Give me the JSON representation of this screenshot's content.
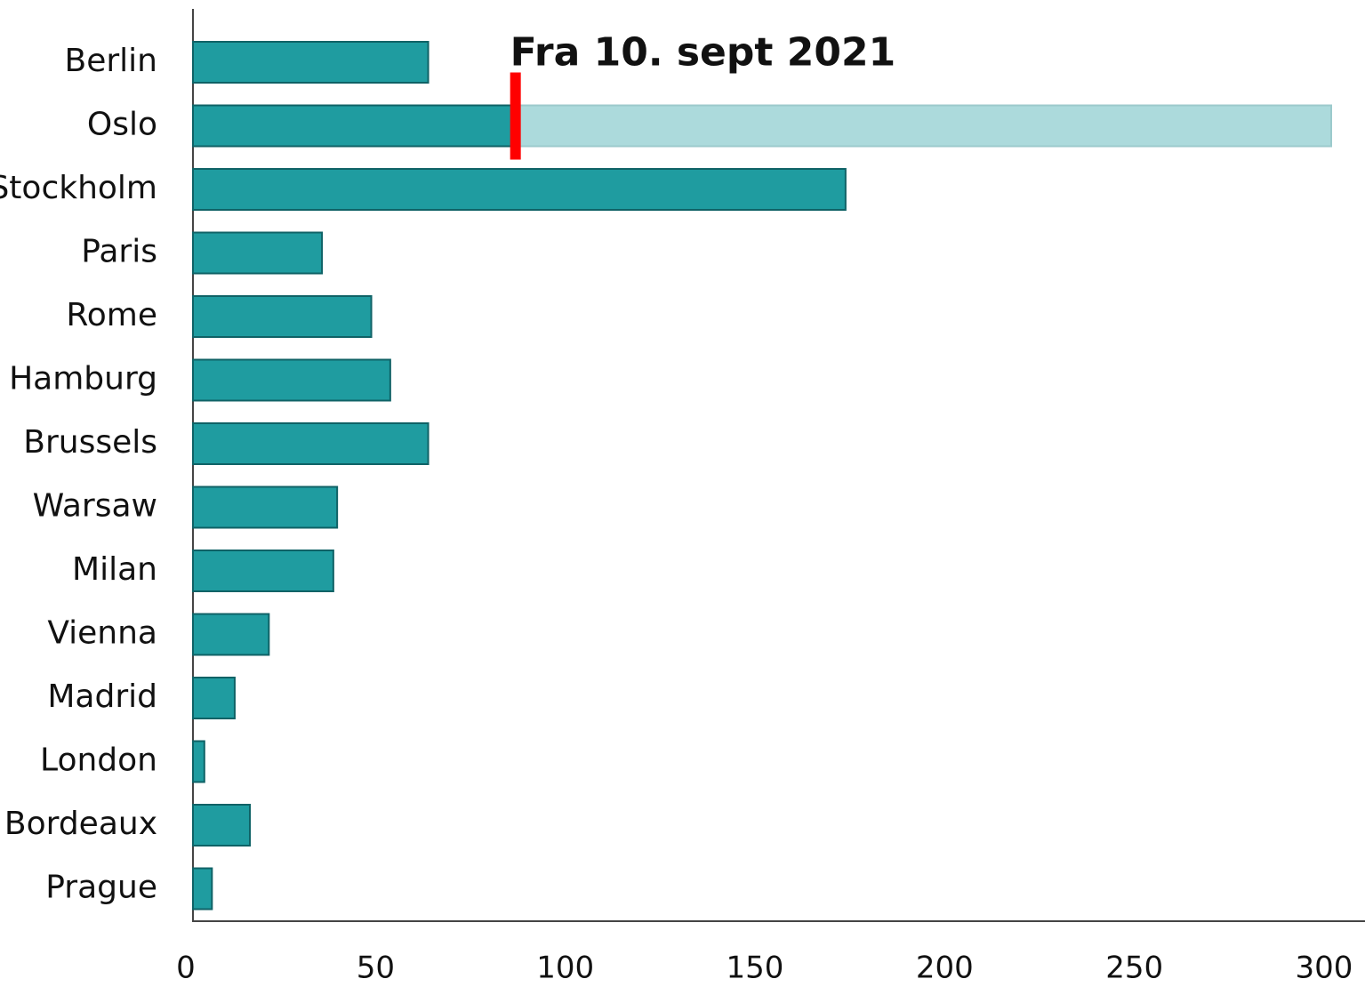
{
  "chart_data": {
    "type": "bar",
    "orientation": "horizontal",
    "stacked": true,
    "categories": [
      "Berlin",
      "Oslo",
      "Stockholm",
      "Paris",
      "Rome",
      "Hamburg",
      "Brussels",
      "Warsaw",
      "Milan",
      "Vienna",
      "Madrid",
      "London",
      "Bordeaux",
      "Prague"
    ],
    "series": [
      {
        "color": "#1f9ca0",
        "values": [
          62,
          85,
          172,
          34,
          47,
          52,
          62,
          38,
          37,
          20,
          11,
          3,
          15,
          5
        ]
      },
      {
        "color": "#acdadc",
        "values": [
          null,
          215,
          null,
          null,
          null,
          null,
          null,
          null,
          null,
          null,
          null,
          null,
          null,
          null
        ]
      }
    ],
    "xlim": [
      0,
      300
    ],
    "xticks": [
      0,
      50,
      100,
      150,
      200,
      250,
      300
    ],
    "annotation": {
      "text": "Fra 10. sept 2021",
      "x": 85,
      "category": "Oslo",
      "color": "#ff0000"
    }
  }
}
